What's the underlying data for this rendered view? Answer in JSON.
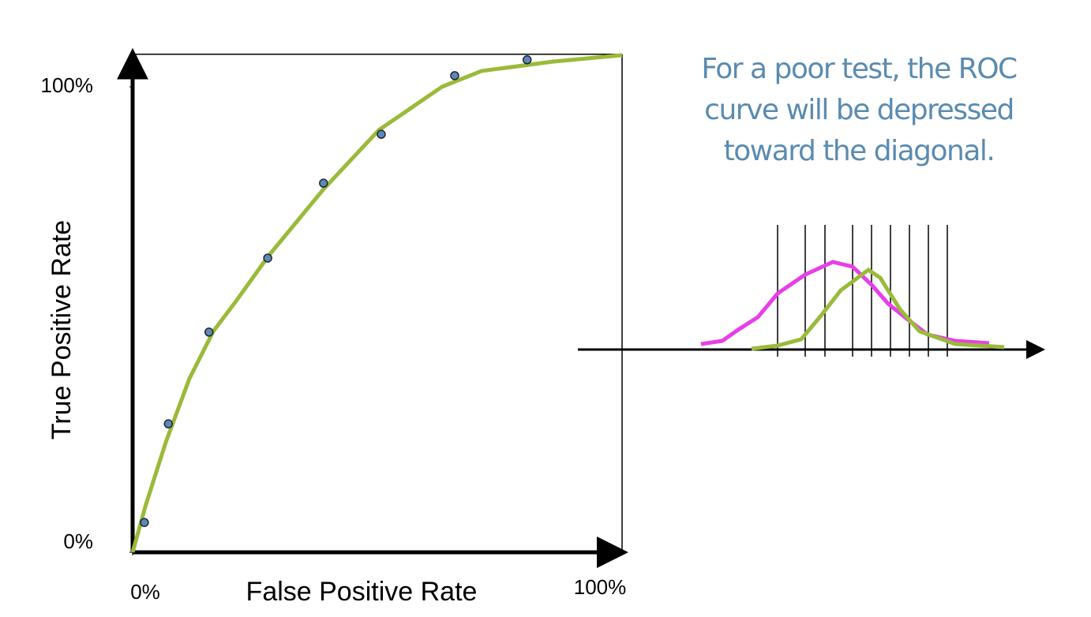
{
  "chart_data": {
    "type": "scatter",
    "x_label": "False Positive Rate",
    "y_label": "True Positive Rate",
    "annotation": "For a poor test, the ROC curve will be depressed toward the diagonal.",
    "xlim": [
      0,
      100
    ],
    "ylim": [
      0,
      107
    ],
    "xticks": [
      {
        "value": 0,
        "label": "0%"
      },
      {
        "value": 100,
        "label": "100%"
      }
    ],
    "yticks": [
      {
        "value": 0,
        "label": "0%"
      },
      {
        "value": 100,
        "label": "100%"
      }
    ],
    "grid": false,
    "series": [
      {
        "mode": "points",
        "color": "#5b8ab5",
        "x": [
          2.4,
          7.3,
          15.6,
          27.6,
          39.0,
          50.8,
          65.8,
          80.6
        ],
        "values": [
          6.4,
          27.6,
          47.3,
          63.2,
          79.3,
          89.8,
          102.4,
          105.8
        ]
      },
      {
        "mode": "line",
        "color": "#9aba3a",
        "x": [
          0,
          2.7,
          6.8,
          11.6,
          16.5,
          21.3,
          27.7,
          39.0,
          50.3,
          63.2,
          71.3,
          85.8,
          100
        ],
        "values": [
          0,
          10.2,
          23.7,
          37.3,
          47.5,
          54.2,
          63.6,
          78.0,
          90.7,
          100.0,
          103.4,
          105.4,
          106.8
        ]
      }
    ]
  }
}
